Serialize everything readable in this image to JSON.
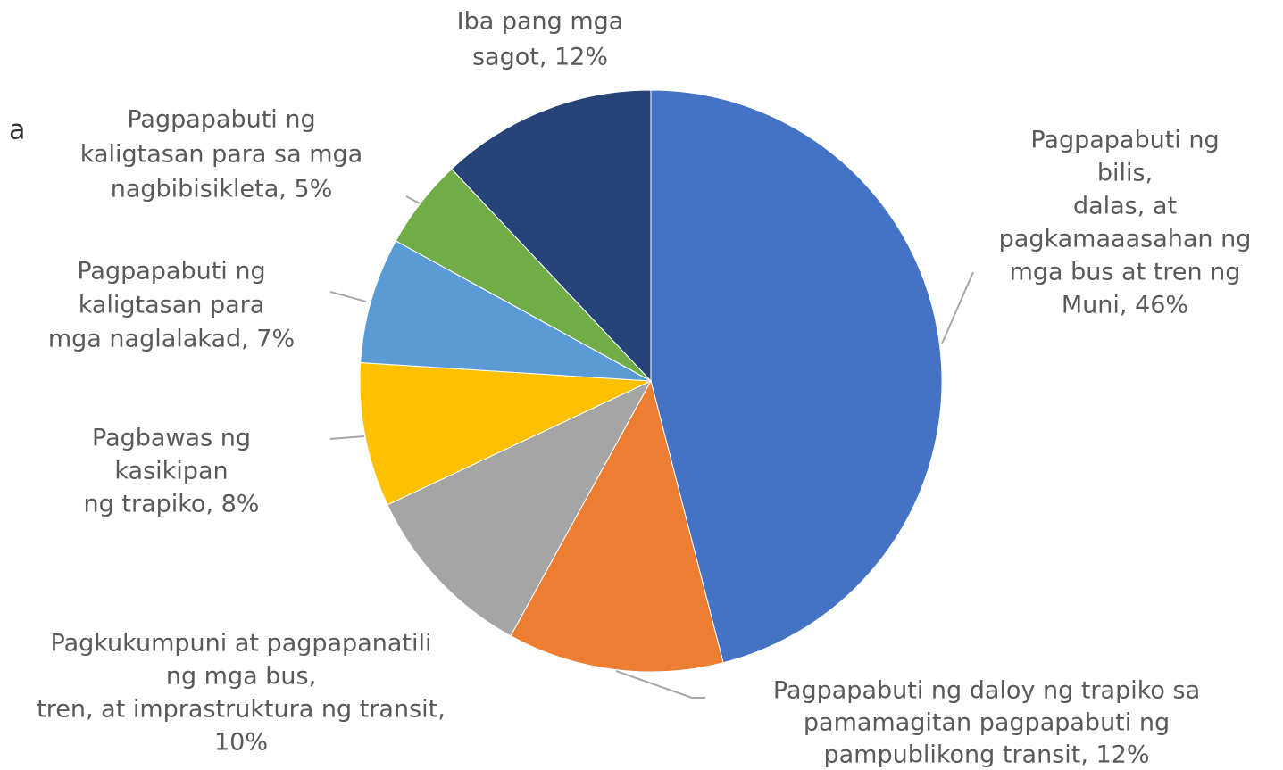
{
  "chart_data": {
    "type": "pie",
    "labels": [
      [
        "Pagpapabuti ng",
        "bilis,",
        "dalas, at",
        "pagkamaaasahan ng",
        "mga bus at tren ng",
        "Muni, 46%"
      ],
      [
        "Pagpapabuti ng daloy ng trapiko sa",
        "pamamagitan pagpapabuti ng",
        "pampublikong transit, 12%"
      ],
      [
        "Pagkukumpuni at pagpapanatili",
        "ng mga bus,",
        "tren, at imprastruktura ng transit,",
        "10%"
      ],
      [
        "Pagbawas ng",
        "kasikipan",
        "ng trapiko, 8%"
      ],
      [
        "Pagpapabuti ng",
        "kaligtasan para",
        "mga naglalakad, 7%"
      ],
      [
        "Pagpapabuti ng",
        "kaligtasan para sa mga",
        "nagbibisikleta, 5%"
      ],
      [
        "Iba pang mga",
        "sagot, 12%"
      ]
    ],
    "values": [
      46,
      12,
      10,
      8,
      7,
      5,
      12
    ],
    "colors": [
      "#4472c4",
      "#ed7d31",
      "#a5a5a5",
      "#ffc000",
      "#5b9bd5",
      "#70ad47",
      "#264478"
    ],
    "fragment": "a"
  }
}
